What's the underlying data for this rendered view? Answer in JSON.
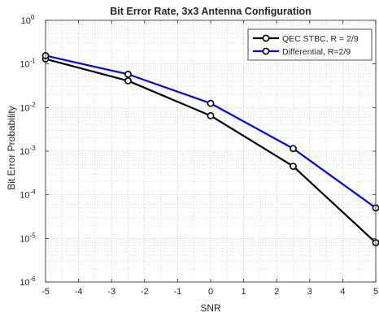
{
  "chart_data": {
    "type": "line",
    "title": "Bit Error Rate, 3x3 Antenna Configuration",
    "xlabel": "SNR",
    "ylabel": "Bit Error Probability",
    "xlim": [
      -5,
      5
    ],
    "ylim": [
      1e-06,
      1
    ],
    "yscale": "log",
    "grid": true,
    "minor_grid": true,
    "legend_position": "top-right",
    "x_ticks": [
      -5,
      -4,
      -3,
      -2,
      -1,
      0,
      1,
      2,
      3,
      4,
      5
    ],
    "x_tick_labels": [
      "-5",
      "-4",
      "-3",
      "-2",
      "-1",
      "0",
      "1",
      "2",
      "3",
      "4",
      "5"
    ],
    "y_ticks": [
      {
        "value": 1e-06,
        "mantissa": "10",
        "exponent": "-6"
      },
      {
        "value": 1e-05,
        "mantissa": "10",
        "exponent": "-5"
      },
      {
        "value": 0.0001,
        "mantissa": "10",
        "exponent": "-4"
      },
      {
        "value": 0.001,
        "mantissa": "10",
        "exponent": "-3"
      },
      {
        "value": 0.01,
        "mantissa": "10",
        "exponent": "-2"
      },
      {
        "value": 0.1,
        "mantissa": "10",
        "exponent": "-1"
      },
      {
        "value": 1,
        "mantissa": "10",
        "exponent": "0"
      }
    ],
    "series": [
      {
        "name": "QEC STBC, R = 2/9",
        "color": "#000000",
        "marker": "circle",
        "x": [
          -5,
          -2.5,
          0,
          2.5,
          5
        ],
        "y": [
          0.13,
          0.041,
          0.0065,
          0.00045,
          8e-06
        ]
      },
      {
        "name": "Differential, R=2/9",
        "color": "#0000ff",
        "marker": "circle",
        "x": [
          -5,
          -2.5,
          0,
          2.5,
          5
        ],
        "y": [
          0.155,
          0.058,
          0.0125,
          0.00115,
          5e-05
        ]
      }
    ]
  }
}
